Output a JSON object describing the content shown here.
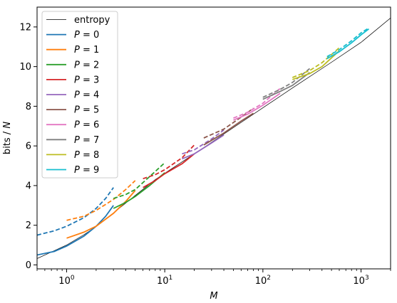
{
  "chart_data": {
    "type": "line",
    "xscale": "log",
    "xlim": [
      0.5,
      2000
    ],
    "ylim": [
      -0.2,
      13.0
    ],
    "grid": false,
    "legend_placement": "upper-left",
    "xlabel": "M",
    "ylabel_parts": [
      "bits / ",
      "N"
    ],
    "x_major_ticks": [
      {
        "value": 1,
        "base": "10",
        "exp": "0"
      },
      {
        "value": 10,
        "base": "10",
        "exp": "1"
      },
      {
        "value": 100,
        "base": "10",
        "exp": "2"
      },
      {
        "value": 1000,
        "base": "10",
        "exp": "3"
      }
    ],
    "y_ticks": [
      0,
      2,
      4,
      6,
      8,
      10,
      12
    ],
    "entropy": {
      "label": "entropy",
      "color": "#000000",
      "x": [
        0.5,
        0.75,
        1,
        1.5,
        2,
        3,
        5,
        8,
        10,
        20,
        50,
        100,
        200,
        500,
        1000,
        2000
      ],
      "y": [
        0.32,
        0.72,
        1.0,
        1.52,
        1.93,
        2.62,
        3.5,
        4.3,
        4.62,
        5.6,
        6.92,
        7.92,
        8.92,
        10.22,
        11.22,
        12.45
      ]
    },
    "series": [
      {
        "label_var": "P",
        "label_val": "0",
        "color": "#1f77b4",
        "solid": {
          "x": [
            0.5,
            0.75,
            1,
            1.5,
            2,
            2.5,
            3
          ],
          "y": [
            0.5,
            0.68,
            0.95,
            1.45,
            1.95,
            2.45,
            3.0
          ]
        },
        "dashed": {
          "x": [
            0.5,
            0.75,
            1,
            1.5,
            2,
            2.5,
            3
          ],
          "y": [
            1.5,
            1.72,
            1.95,
            2.38,
            2.85,
            3.35,
            3.9
          ]
        }
      },
      {
        "label_var": "P",
        "label_val": "1",
        "color": "#ff7f0e",
        "solid": {
          "x": [
            1,
            1.5,
            2,
            3,
            4,
            5
          ],
          "y": [
            1.35,
            1.65,
            1.95,
            2.6,
            3.2,
            3.75
          ]
        },
        "dashed": {
          "x": [
            1,
            1.5,
            2,
            3,
            4,
            5
          ],
          "y": [
            2.25,
            2.45,
            2.75,
            3.3,
            3.8,
            4.25
          ]
        }
      },
      {
        "label_var": "P",
        "label_val": "2",
        "color": "#2ca02c",
        "solid": {
          "x": [
            3,
            4,
            5,
            7,
            10
          ],
          "y": [
            2.85,
            3.15,
            3.45,
            4.0,
            4.65
          ]
        },
        "dashed": {
          "x": [
            3,
            4,
            5,
            7,
            10
          ],
          "y": [
            3.35,
            3.55,
            3.8,
            4.45,
            5.15
          ]
        }
      },
      {
        "label_var": "P",
        "label_val": "3",
        "color": "#d62728",
        "solid": {
          "x": [
            6,
            8,
            10,
            15,
            20
          ],
          "y": [
            3.9,
            4.25,
            4.6,
            5.1,
            5.6
          ]
        },
        "dashed": {
          "x": [
            6,
            8,
            10,
            15,
            20
          ],
          "y": [
            4.35,
            4.55,
            4.8,
            5.4,
            6.05
          ]
        }
      },
      {
        "label_var": "P",
        "label_val": "4",
        "color": "#9467bd",
        "solid": {
          "x": [
            15,
            20,
            30,
            40
          ],
          "y": [
            5.35,
            5.6,
            6.15,
            6.55
          ]
        },
        "dashed": {
          "x": [
            15,
            20,
            30,
            40
          ],
          "y": [
            5.6,
            5.8,
            6.35,
            6.8
          ]
        }
      },
      {
        "label_var": "P",
        "label_val": "5",
        "color": "#8c564b",
        "solid": {
          "x": [
            25,
            40,
            60,
            80
          ],
          "y": [
            6.05,
            6.65,
            7.25,
            7.65
          ]
        },
        "dashed": {
          "x": [
            25,
            40,
            60,
            80
          ],
          "y": [
            6.4,
            6.85,
            7.45,
            7.9
          ]
        }
      },
      {
        "label_var": "P",
        "label_val": "6",
        "color": "#e377c2",
        "solid": {
          "x": [
            50,
            70,
            100,
            150
          ],
          "y": [
            7.3,
            7.6,
            8.05,
            8.65
          ]
        },
        "dashed": {
          "x": [
            50,
            70,
            100,
            150
          ],
          "y": [
            7.4,
            7.7,
            8.15,
            8.9
          ]
        }
      },
      {
        "label_var": "P",
        "label_val": "7",
        "color": "#7f7f7f",
        "solid": {
          "x": [
            100,
            150,
            200,
            300
          ],
          "y": [
            8.35,
            8.75,
            9.05,
            9.7
          ]
        },
        "dashed": {
          "x": [
            100,
            150,
            200,
            300
          ],
          "y": [
            8.45,
            8.85,
            9.2,
            9.9
          ]
        }
      },
      {
        "label_var": "P",
        "label_val": "8",
        "color": "#bcbd22",
        "solid": {
          "x": [
            200,
            300,
            400,
            600
          ],
          "y": [
            9.35,
            9.65,
            10.0,
            10.8
          ]
        },
        "dashed": {
          "x": [
            200,
            300,
            400,
            600
          ],
          "y": [
            9.45,
            9.8,
            10.2,
            10.95
          ]
        }
      },
      {
        "label_var": "P",
        "label_val": "9",
        "color": "#17becf",
        "solid": {
          "x": [
            450,
            600,
            800,
            1000,
            1200
          ],
          "y": [
            10.4,
            10.75,
            11.2,
            11.6,
            11.9
          ]
        },
        "dashed": {
          "x": [
            450,
            600,
            800,
            1000,
            1200
          ],
          "y": [
            10.5,
            10.85,
            11.3,
            11.7,
            11.95
          ]
        }
      }
    ]
  }
}
